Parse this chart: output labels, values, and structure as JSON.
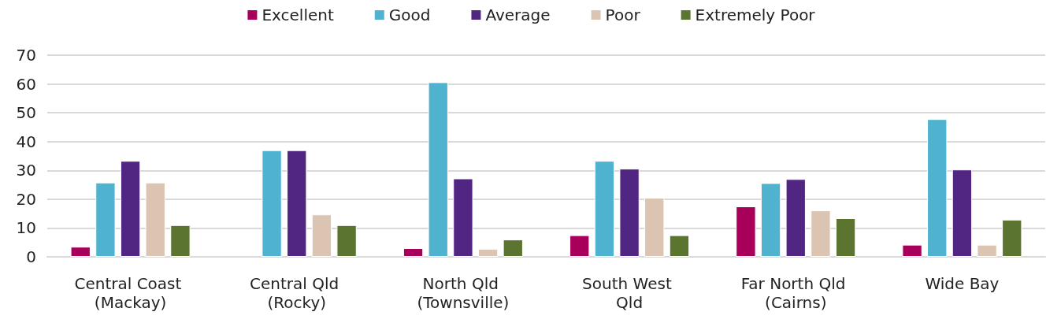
{
  "chart_data": {
    "type": "bar",
    "categories": [
      "Central Coast (Mackay)",
      "Central Qld (Rocky)",
      "North Qld (Townsville)",
      "South West Qld",
      "Far North Qld (Cairns)",
      "Wide Bay"
    ],
    "series": [
      {
        "name": "Excellent",
        "color": "#a8005a",
        "values": [
          3.5,
          null,
          3,
          7.5,
          17.5,
          4.2
        ]
      },
      {
        "name": "Good",
        "color": "#4fb3cf",
        "values": [
          25.8,
          37,
          60.6,
          33.3,
          25.6,
          47.8
        ]
      },
      {
        "name": "Average",
        "color": "#512683",
        "values": [
          33.3,
          37,
          27.2,
          30.6,
          27,
          30.3
        ]
      },
      {
        "name": "Poor",
        "color": "#dbc5b2",
        "values": [
          25.8,
          14.7,
          2.8,
          20.5,
          16.1,
          4.2
        ]
      },
      {
        "name": "Extremely Poor",
        "color": "#5b7430",
        "values": [
          11,
          11,
          6,
          7.5,
          13.4,
          12.9
        ]
      }
    ],
    "ylim": [
      0,
      70
    ],
    "yticks": [
      0,
      10,
      20,
      30,
      40,
      50,
      60,
      70
    ],
    "grid": "y",
    "legend": "top"
  }
}
